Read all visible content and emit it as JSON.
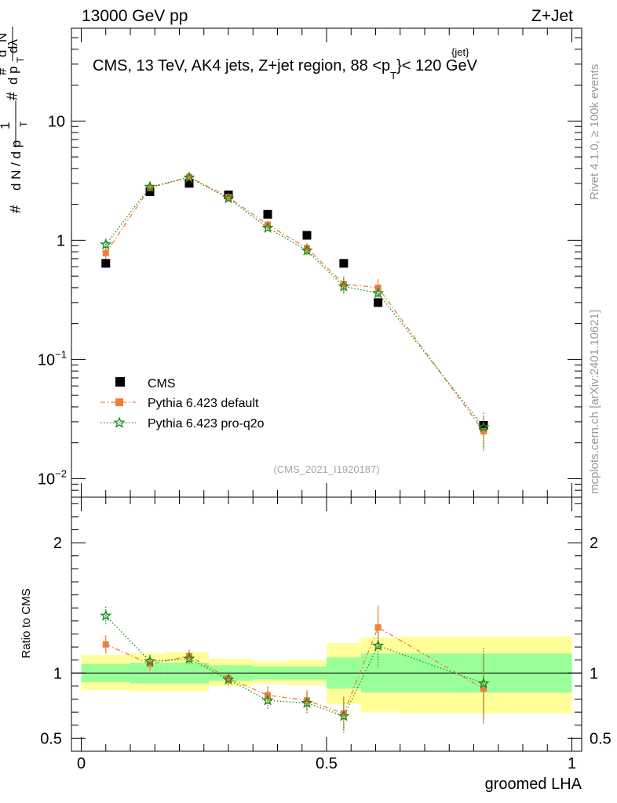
{
  "header": {
    "left": "13000 GeV pp",
    "right": "Z+Jet",
    "title": "CMS, 13 TeV, AK4 jets, Z+jet region, 88 <p",
    "title_sup": "{jet}",
    "title_sub": "T",
    "title_end": "}< 120 GeV",
    "side_top": "Rivet 4.1.0, ≥ 100k events",
    "side_bottom": "mcplots.cern.ch [arXiv:2401.10621]",
    "analysis_id": "(CMS_2021_I1920187)"
  },
  "chart_data": [
    {
      "type": "scatter",
      "title": "CMS, 13 TeV, AK4 jets, Z+jet region, 88 <p_T^{jet}< 120 GeV",
      "ylabel": "1/(dN/dpT) d²N/(dpT dλ)",
      "yscale": "log",
      "ylim": [
        0.007,
        60
      ],
      "xlim": [
        -0.02,
        1.02
      ],
      "y_ticks": [
        {
          "value": 10,
          "label": "10"
        },
        {
          "value": 1,
          "label": "1"
        },
        {
          "value": 0.1,
          "label": "10",
          "sup": "−1"
        },
        {
          "value": 0.01,
          "label": "10",
          "sup": "−2"
        }
      ],
      "legend_position": "lower-left",
      "series": [
        {
          "name": "CMS",
          "color": "#000000",
          "x": [
            0.05,
            0.14,
            0.22,
            0.3,
            0.38,
            0.46,
            0.535,
            0.605,
            0.82
          ],
          "values": [
            0.64,
            2.55,
            3.0,
            2.4,
            1.65,
            1.1,
            0.64,
            0.3,
            0.028
          ]
        },
        {
          "name": "Pythia 6.423 default",
          "color": "#ee7f3b",
          "x": [
            0.05,
            0.14,
            0.22,
            0.3,
            0.38,
            0.46,
            0.535,
            0.605,
            0.82
          ],
          "values": [
            0.78,
            2.75,
            3.4,
            2.3,
            1.35,
            0.86,
            0.43,
            0.4,
            0.025
          ]
        },
        {
          "name": "Pythia 6.423 pro-q2o",
          "color": "#1e8a1e",
          "x": [
            0.05,
            0.14,
            0.22,
            0.3,
            0.38,
            0.46,
            0.535,
            0.605,
            0.82
          ],
          "values": [
            0.92,
            2.8,
            3.35,
            2.25,
            1.27,
            0.82,
            0.41,
            0.36,
            0.027
          ]
        }
      ]
    },
    {
      "type": "scatter",
      "xlabel": "groomed LHA",
      "ylabel": "Ratio to CMS",
      "ylim": [
        0.4,
        2.35
      ],
      "xlim": [
        -0.02,
        1.02
      ],
      "x_ticks": [
        "0",
        "0.5",
        "1"
      ],
      "y_ticks": [
        "0.5",
        "1",
        "2"
      ],
      "bands": {
        "edges": [
          0.0,
          0.1,
          0.17,
          0.26,
          0.35,
          0.42,
          0.5,
          0.57,
          0.65,
          1.0
        ],
        "stat_lo": [
          0.93,
          0.92,
          0.92,
          0.94,
          0.95,
          0.95,
          0.88,
          0.85,
          0.85
        ],
        "stat_hi": [
          1.07,
          1.08,
          1.08,
          1.06,
          1.05,
          1.05,
          1.12,
          1.15,
          1.15
        ],
        "total_lo": [
          0.87,
          0.86,
          0.86,
          0.9,
          0.92,
          0.91,
          0.76,
          0.7,
          0.69
        ],
        "total_hi": [
          1.14,
          1.15,
          1.16,
          1.11,
          1.09,
          1.1,
          1.23,
          1.27,
          1.28
        ]
      },
      "series": [
        {
          "name": "Pythia 6.423 default",
          "color": "#ee7f3b",
          "x": [
            0.05,
            0.14,
            0.22,
            0.3,
            0.38,
            0.46,
            0.535,
            0.605,
            0.82
          ],
          "values": [
            1.22,
            1.07,
            1.13,
            0.96,
            0.83,
            0.79,
            0.69,
            1.35,
            0.88
          ]
        },
        {
          "name": "Pythia 6.423 pro-q2o",
          "color": "#1e8a1e",
          "x": [
            0.05,
            0.14,
            0.22,
            0.3,
            0.38,
            0.46,
            0.535,
            0.605,
            0.82
          ],
          "values": [
            1.44,
            1.09,
            1.11,
            0.95,
            0.79,
            0.77,
            0.67,
            1.21,
            0.92
          ]
        }
      ]
    }
  ]
}
